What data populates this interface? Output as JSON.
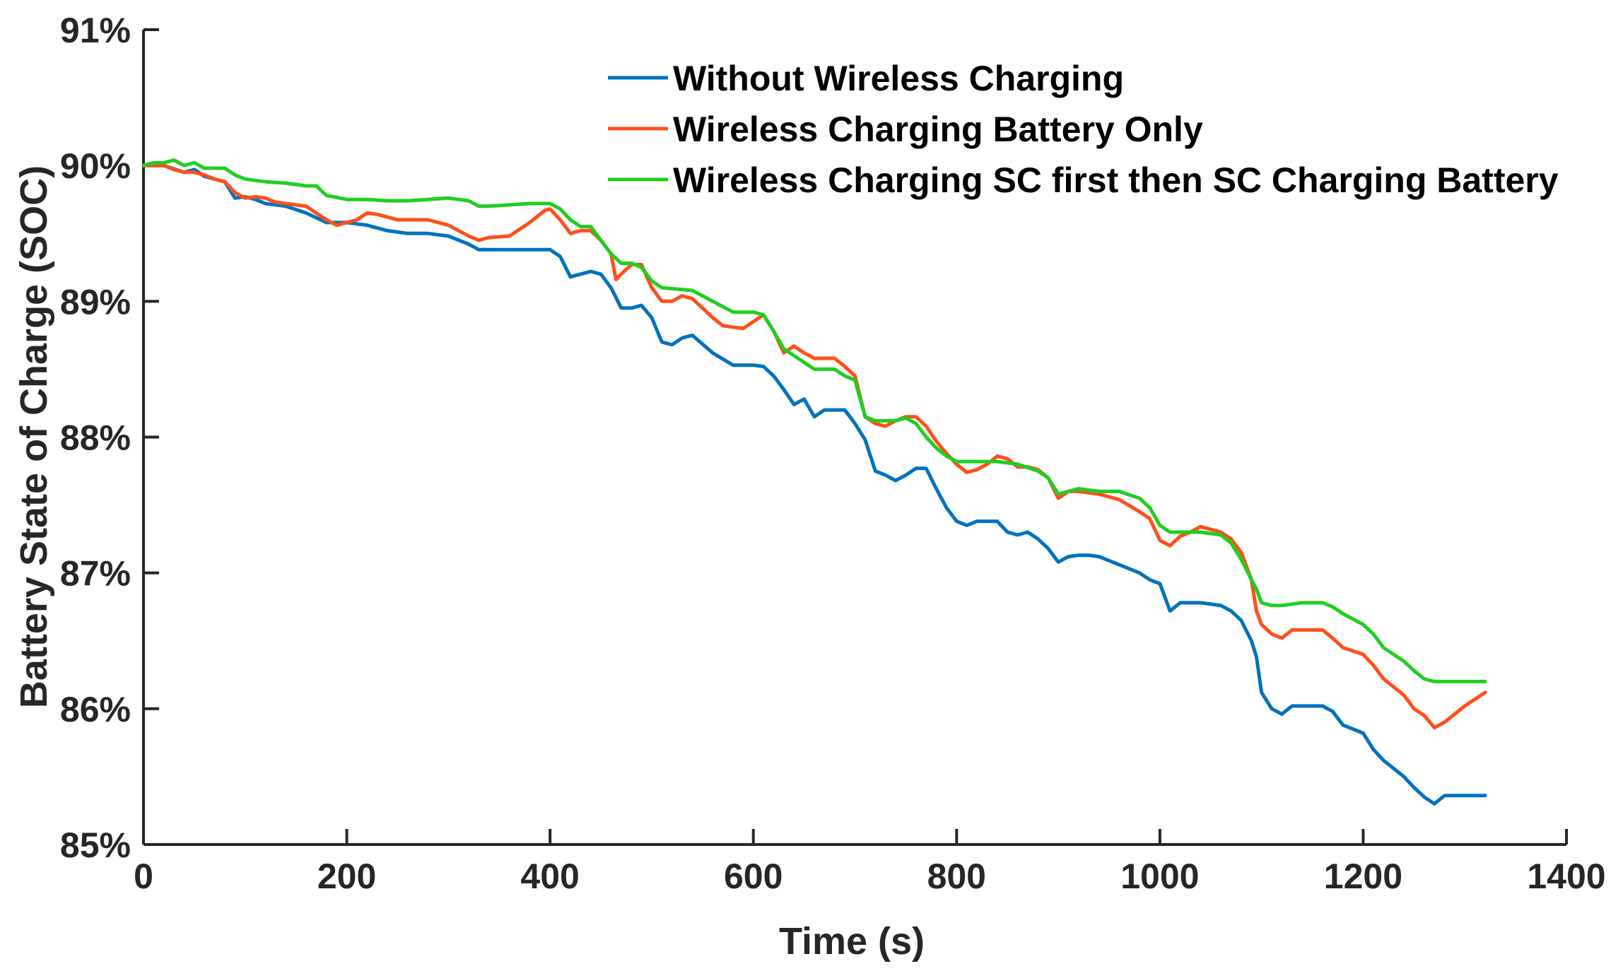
{
  "chart_data": {
    "type": "line",
    "title": "",
    "xlabel": "Time (s)",
    "ylabel": "Battery State of Charge (SOC)",
    "xlim": [
      0,
      1400
    ],
    "ylim": [
      85,
      91
    ],
    "xticks": [
      0,
      200,
      400,
      600,
      800,
      1000,
      1200,
      1400
    ],
    "xtick_labels": [
      "0",
      "200",
      "400",
      "600",
      "800",
      "1000",
      "1200",
      "1400"
    ],
    "yticks": [
      85,
      86,
      87,
      88,
      89,
      90,
      91
    ],
    "ytick_labels": [
      "85%",
      "86%",
      "87%",
      "88%",
      "89%",
      "90%",
      "91%"
    ],
    "grid": false,
    "legend_position": "top-right",
    "series": [
      {
        "name": "Without Wireless Charging",
        "color": "#0072BD",
        "x": [
          0,
          20,
          40,
          50,
          60,
          70,
          80,
          90,
          100,
          110,
          120,
          140,
          160,
          180,
          200,
          210,
          220,
          240,
          260,
          280,
          300,
          320,
          330,
          340,
          360,
          380,
          400,
          410,
          420,
          430,
          440,
          450,
          460,
          470,
          480,
          490,
          500,
          510,
          520,
          530,
          540,
          560,
          580,
          600,
          610,
          620,
          630,
          640,
          650,
          660,
          670,
          690,
          700,
          710,
          720,
          730,
          740,
          750,
          760,
          770,
          780,
          790,
          800,
          810,
          820,
          830,
          840,
          850,
          860,
          870,
          880,
          890,
          900,
          910,
          920,
          930,
          940,
          960,
          980,
          990,
          1000,
          1010,
          1020,
          1040,
          1060,
          1070,
          1080,
          1090,
          1095,
          1100,
          1110,
          1120,
          1130,
          1160,
          1170,
          1180,
          1200,
          1210,
          1220,
          1240,
          1250,
          1260,
          1270,
          1280,
          1300,
          1320
        ],
        "y": [
          90.0,
          90.0,
          89.95,
          89.97,
          89.92,
          89.9,
          89.88,
          89.76,
          89.77,
          89.75,
          89.72,
          89.7,
          89.65,
          89.58,
          89.58,
          89.57,
          89.56,
          89.52,
          89.5,
          89.5,
          89.48,
          89.42,
          89.38,
          89.38,
          89.38,
          89.38,
          89.38,
          89.33,
          89.18,
          89.2,
          89.22,
          89.2,
          89.1,
          88.95,
          88.95,
          88.97,
          88.88,
          88.7,
          88.68,
          88.73,
          88.75,
          88.62,
          88.53,
          88.53,
          88.52,
          88.45,
          88.35,
          88.24,
          88.28,
          88.15,
          88.2,
          88.2,
          88.1,
          87.98,
          87.75,
          87.72,
          87.68,
          87.72,
          87.77,
          87.77,
          87.62,
          87.48,
          87.38,
          87.35,
          87.38,
          87.38,
          87.38,
          87.3,
          87.28,
          87.3,
          87.25,
          87.18,
          87.08,
          87.12,
          87.13,
          87.13,
          87.12,
          87.06,
          87.0,
          86.95,
          86.92,
          86.72,
          86.78,
          86.78,
          86.76,
          86.72,
          86.65,
          86.5,
          86.38,
          86.12,
          86.0,
          85.96,
          86.02,
          86.02,
          85.98,
          85.88,
          85.82,
          85.7,
          85.62,
          85.5,
          85.42,
          85.35,
          85.3,
          85.36,
          85.36,
          85.36
        ]
      },
      {
        "name": "Wireless Charging Battery Only",
        "color": "#FF4F1A",
        "x": [
          0,
          20,
          30,
          40,
          50,
          60,
          70,
          80,
          90,
          100,
          110,
          120,
          130,
          140,
          160,
          180,
          190,
          200,
          210,
          220,
          230,
          240,
          250,
          260,
          280,
          300,
          320,
          330,
          340,
          360,
          380,
          395,
          400,
          410,
          420,
          430,
          440,
          450,
          460,
          465,
          470,
          480,
          490,
          500,
          510,
          520,
          530,
          540,
          550,
          560,
          570,
          590,
          600,
          610,
          620,
          630,
          640,
          650,
          660,
          680,
          690,
          700,
          710,
          720,
          730,
          740,
          750,
          760,
          770,
          780,
          790,
          800,
          810,
          820,
          830,
          840,
          850,
          860,
          870,
          880,
          890,
          900,
          910,
          920,
          940,
          960,
          980,
          990,
          1000,
          1010,
          1020,
          1030,
          1040,
          1060,
          1070,
          1080,
          1090,
          1095,
          1100,
          1110,
          1120,
          1130,
          1140,
          1160,
          1170,
          1180,
          1200,
          1210,
          1220,
          1240,
          1250,
          1260,
          1270,
          1280,
          1300,
          1320
        ],
        "y": [
          90.0,
          90.0,
          89.97,
          89.95,
          89.95,
          89.93,
          89.9,
          89.88,
          89.8,
          89.76,
          89.77,
          89.76,
          89.73,
          89.72,
          89.7,
          89.6,
          89.56,
          89.58,
          89.6,
          89.65,
          89.64,
          89.62,
          89.6,
          89.6,
          89.6,
          89.56,
          89.48,
          89.45,
          89.47,
          89.48,
          89.58,
          89.67,
          89.68,
          89.6,
          89.5,
          89.52,
          89.52,
          89.45,
          89.35,
          89.16,
          89.2,
          89.27,
          89.27,
          89.1,
          89.0,
          89.0,
          89.04,
          89.02,
          88.95,
          88.88,
          88.82,
          88.8,
          88.85,
          88.9,
          88.78,
          88.62,
          88.67,
          88.62,
          88.58,
          88.58,
          88.52,
          88.45,
          88.15,
          88.1,
          88.08,
          88.12,
          88.15,
          88.15,
          88.08,
          87.97,
          87.88,
          87.8,
          87.74,
          87.76,
          87.8,
          87.86,
          87.84,
          87.78,
          87.78,
          87.76,
          87.7,
          87.55,
          87.6,
          87.6,
          87.58,
          87.54,
          87.45,
          87.4,
          87.24,
          87.2,
          87.27,
          87.3,
          87.34,
          87.3,
          87.25,
          87.15,
          86.95,
          86.72,
          86.62,
          86.55,
          86.52,
          86.58,
          86.58,
          86.58,
          86.52,
          86.45,
          86.4,
          86.32,
          86.22,
          86.1,
          86.0,
          85.95,
          85.86,
          85.9,
          86.02,
          86.12
        ]
      },
      {
        "name": "Wireless Charging SC first then SC Charging Battery",
        "color": "#21CE21",
        "x": [
          0,
          10,
          20,
          30,
          40,
          50,
          60,
          70,
          80,
          90,
          100,
          120,
          140,
          160,
          170,
          180,
          200,
          220,
          240,
          260,
          280,
          300,
          320,
          330,
          340,
          360,
          380,
          400,
          410,
          420,
          430,
          440,
          450,
          460,
          470,
          480,
          490,
          500,
          510,
          540,
          560,
          580,
          600,
          610,
          620,
          630,
          640,
          650,
          660,
          680,
          690,
          700,
          710,
          720,
          730,
          740,
          750,
          760,
          770,
          780,
          790,
          800,
          820,
          840,
          860,
          880,
          890,
          900,
          920,
          940,
          960,
          980,
          990,
          1000,
          1010,
          1020,
          1040,
          1060,
          1070,
          1080,
          1090,
          1095,
          1100,
          1110,
          1120,
          1140,
          1160,
          1170,
          1180,
          1200,
          1210,
          1220,
          1240,
          1250,
          1260,
          1270,
          1280,
          1300,
          1320
        ],
        "y": [
          90.0,
          90.02,
          90.02,
          90.04,
          90.0,
          90.02,
          89.98,
          89.98,
          89.98,
          89.93,
          89.9,
          89.88,
          89.87,
          89.85,
          89.85,
          89.78,
          89.75,
          89.75,
          89.74,
          89.74,
          89.75,
          89.76,
          89.74,
          89.7,
          89.7,
          89.71,
          89.72,
          89.72,
          89.68,
          89.6,
          89.55,
          89.55,
          89.45,
          89.35,
          89.28,
          89.28,
          89.25,
          89.15,
          89.1,
          89.08,
          89.0,
          88.92,
          88.92,
          88.9,
          88.78,
          88.65,
          88.6,
          88.55,
          88.5,
          88.5,
          88.45,
          88.42,
          88.15,
          88.12,
          88.12,
          88.12,
          88.14,
          88.1,
          88.0,
          87.92,
          87.86,
          87.82,
          87.82,
          87.82,
          87.8,
          87.75,
          87.7,
          87.58,
          87.62,
          87.6,
          87.6,
          87.55,
          87.48,
          87.35,
          87.3,
          87.3,
          87.3,
          87.28,
          87.22,
          87.1,
          86.95,
          86.88,
          86.78,
          86.76,
          86.76,
          86.78,
          86.78,
          86.75,
          86.7,
          86.62,
          86.55,
          86.45,
          86.35,
          86.28,
          86.22,
          86.2,
          86.2,
          86.2,
          86.2
        ]
      }
    ]
  }
}
